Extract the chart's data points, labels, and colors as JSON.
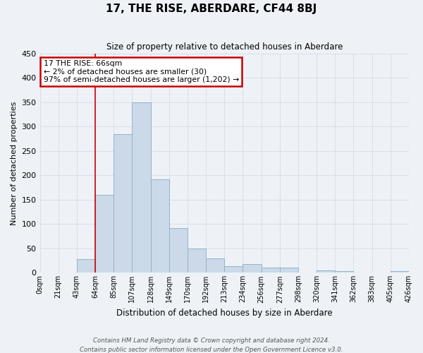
{
  "title": "17, THE RISE, ABERDARE, CF44 8BJ",
  "subtitle": "Size of property relative to detached houses in Aberdare",
  "xlabel": "Distribution of detached houses by size in Aberdare",
  "ylabel": "Number of detached properties",
  "bar_color": "#ccd9e8",
  "bar_edge_color": "#92b4cc",
  "background_color": "#eef2f7",
  "grid_color": "#d8e0ea",
  "tick_labels": [
    "0sqm",
    "21sqm",
    "43sqm",
    "64sqm",
    "85sqm",
    "107sqm",
    "128sqm",
    "149sqm",
    "170sqm",
    "192sqm",
    "213sqm",
    "234sqm",
    "256sqm",
    "277sqm",
    "298sqm",
    "320sqm",
    "341sqm",
    "362sqm",
    "383sqm",
    "405sqm",
    "426sqm"
  ],
  "bar_heights": [
    0,
    0,
    28,
    160,
    285,
    350,
    192,
    92,
    50,
    30,
    13,
    18,
    10,
    10,
    0,
    5,
    4,
    0,
    0,
    3
  ],
  "ylim": [
    0,
    450
  ],
  "yticks": [
    0,
    50,
    100,
    150,
    200,
    250,
    300,
    350,
    400,
    450
  ],
  "annotation_title": "17 THE RISE: 66sqm",
  "annotation_line2": "← 2% of detached houses are smaller (30)",
  "annotation_line3": "97% of semi-detached houses are larger (1,202) →",
  "annotation_box_color": "#ffffff",
  "annotation_box_edge": "#cc0000",
  "property_line_x": 3,
  "footnote1": "Contains HM Land Registry data © Crown copyright and database right 2024.",
  "footnote2": "Contains public sector information licensed under the Open Government Licence v3.0."
}
